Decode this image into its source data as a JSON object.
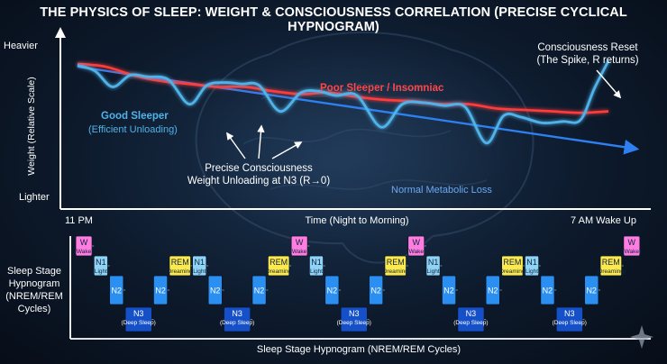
{
  "title": "THE PHYSICS OF SLEEP: WEIGHT & CONSCIOUSNESS CORRELATION (PRECISE CYCLICAL HYPNOGRAM)",
  "chart_data": [
    {
      "type": "line",
      "ylabel": "Weight (Relative Scale)",
      "ytick_top": "Heavier",
      "ytick_bottom": "Lighter",
      "xlabel": "Time (Night to Morning)",
      "xtick_start": "11 PM",
      "xtick_end": "7 AM Wake Up",
      "xlim": [
        0,
        8
      ],
      "ylim": [
        0,
        10
      ],
      "series": [
        {
          "name": "Poor Sleeper / Insomniac",
          "color": "#ff3b3b",
          "x": [
            0,
            0.4,
            0.8,
            1.2,
            1.6,
            2.0,
            2.4,
            2.8,
            3.2,
            3.6,
            4.0,
            4.4,
            4.8,
            5.2,
            5.6,
            6.0,
            6.4,
            6.8,
            7.2,
            7.6
          ],
          "values": [
            9.2,
            9.0,
            8.4,
            8.0,
            7.8,
            7.6,
            7.6,
            7.3,
            7.1,
            7.2,
            6.9,
            6.7,
            6.6,
            6.4,
            6.4,
            6.1,
            6.0,
            5.9,
            5.8,
            5.9
          ]
        },
        {
          "name": "Good Sleeper",
          "sublabel": "(Efficient Unloading)",
          "color": "#4fb3ea",
          "x": [
            0,
            0.25,
            0.5,
            0.75,
            1.0,
            1.3,
            1.6,
            1.85,
            2.1,
            2.35,
            2.6,
            2.9,
            3.2,
            3.45,
            3.7,
            4.0,
            4.35,
            4.65,
            4.95,
            5.25,
            5.55,
            5.85,
            6.1,
            6.35,
            6.65,
            6.95,
            7.2,
            7.4,
            7.6
          ],
          "values": [
            9.1,
            8.7,
            7.6,
            8.4,
            8.3,
            8.1,
            6.4,
            7.7,
            7.9,
            7.8,
            7.7,
            5.9,
            7.2,
            7.3,
            7.0,
            7.0,
            4.8,
            6.4,
            6.5,
            6.3,
            6.2,
            3.7,
            5.6,
            5.5,
            5.1,
            5.2,
            5.3,
            7.5,
            9.4
          ]
        },
        {
          "name": "Normal Metabolic Loss",
          "color": "#2e7ff0",
          "x": [
            0,
            8.0
          ],
          "values": [
            9.0,
            3.3
          ]
        }
      ],
      "annotations": [
        "Precise Consciousness",
        "Weight Unloading at N3 (R→0)",
        "Consciousness Reset",
        "(The Spike, R returns)"
      ]
    },
    {
      "type": "hypnogram",
      "ylabel_lines": [
        "Sleep Stage",
        "Hypnogram",
        "(NREM/REM",
        "Cycles)"
      ],
      "xlabel": "Sleep Stage Hypnogram (NREM/REM Cycles)",
      "stages": {
        "W": {
          "label": "W",
          "sub": "(Wake)",
          "color": "#ff7ce0"
        },
        "N1": {
          "label": "N1",
          "sub": "(Light)",
          "color": "#8fd3f7"
        },
        "N2": {
          "label": "N2",
          "sub": "",
          "color": "#2a8ff0"
        },
        "N3": {
          "label": "N3",
          "sub": "(Deep Sleep)",
          "color": "#1650c9"
        },
        "REM": {
          "label": "REM",
          "sub": "(Dreaming)",
          "color": "#fbe94d"
        }
      },
      "sequence": [
        "W",
        "N1",
        "N2",
        "N3",
        "N2",
        "REM",
        "N1",
        "N2",
        "N3",
        "N2",
        "REM",
        "W",
        "N1",
        "N2",
        "N3",
        "N2",
        "REM",
        "W",
        "N1",
        "N2",
        "N3",
        "N2",
        "REM",
        "N1",
        "N2",
        "N3",
        "N2",
        "REM",
        "W"
      ]
    }
  ]
}
